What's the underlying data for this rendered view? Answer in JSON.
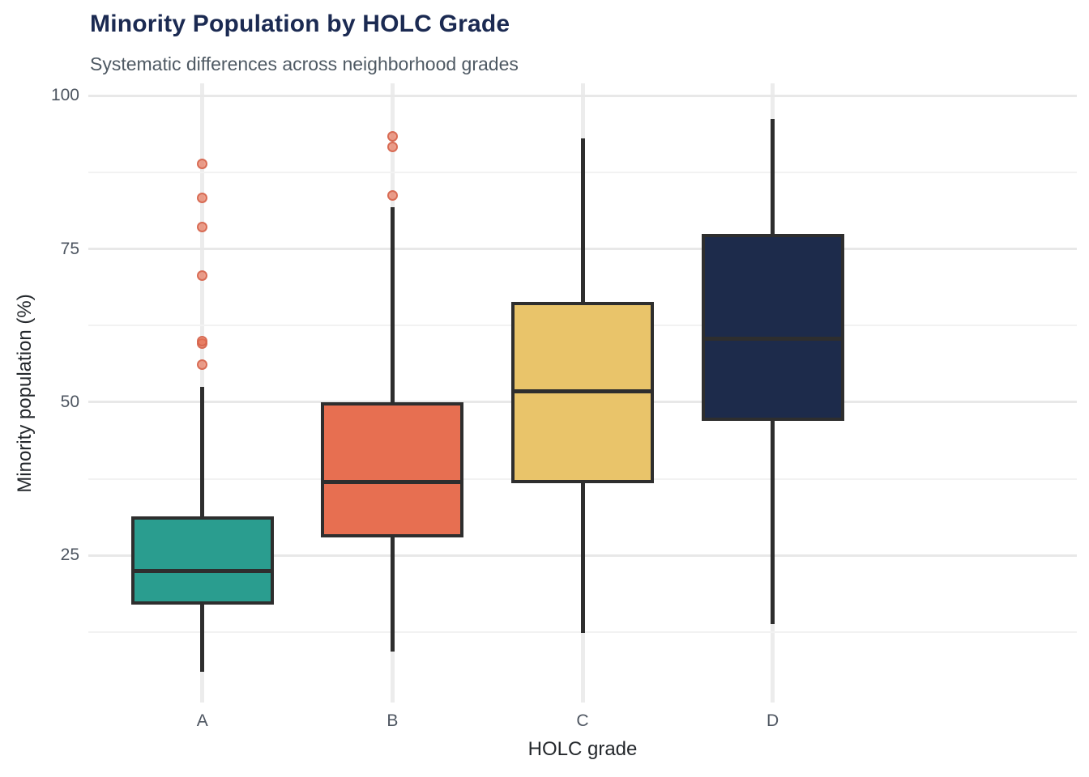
{
  "header": {
    "title": "Minority Population by HOLC Grade",
    "subtitle": "Systematic differences across neighborhood grades"
  },
  "chart_data": {
    "type": "boxplot",
    "title": "Minority Population by HOLC Grade",
    "subtitle": "Systematic differences across neighborhood grades",
    "xlabel": "HOLC grade",
    "ylabel": "Minority population (%)",
    "categories": [
      "A",
      "B",
      "C",
      "D"
    ],
    "y_ticks": [
      25,
      50,
      75,
      100
    ],
    "y_minor_ticks": [
      12.5,
      37.5,
      62.5,
      87.5
    ],
    "ylim": [
      1,
      102
    ],
    "grid": "horizontal major+minor gridlines, vertical major gridline at each category, no axis lines, no legend",
    "legend": "none",
    "series": [
      {
        "name": "A",
        "color": "#2a9d8f",
        "whisker_low": 6,
        "q1": 17,
        "median": 22.5,
        "q3": 31.4,
        "whisker_high": 52.5,
        "outliers": [
          56.1,
          59.5,
          60,
          70.6,
          78.6,
          83.3,
          88.8
        ]
      },
      {
        "name": "B",
        "color": "#e76f51",
        "whisker_low": 9.3,
        "q1": 27.9,
        "median": 37,
        "q3": 50,
        "whisker_high": 81.8,
        "outliers": [
          83.7,
          91.7,
          93.4
        ]
      },
      {
        "name": "C",
        "color": "#e9c46a",
        "whisker_low": 12.4,
        "q1": 36.8,
        "median": 51.8,
        "q3": 66.4,
        "whisker_high": 93,
        "outliers": []
      },
      {
        "name": "D",
        "color": "#1d2b4b",
        "whisker_low": 13.8,
        "q1": 47,
        "median": 60.3,
        "q3": 77.5,
        "whisker_high": 96.2,
        "outliers": []
      }
    ],
    "style": {
      "box_border_color": "#2e2e2e",
      "median_color": "#2e2e2e",
      "whisker_color": "#2e2e2e",
      "outlier_color": "#e76f51",
      "major_grid_color": "#e8e8e8",
      "minor_grid_color": "#f2f2f2",
      "title_color": "#1b2a52",
      "subtitle_color": "#4e5963",
      "tick_label_color": "#4d5560",
      "axis_title_color": "#24282c",
      "background": "#ffffff"
    }
  }
}
